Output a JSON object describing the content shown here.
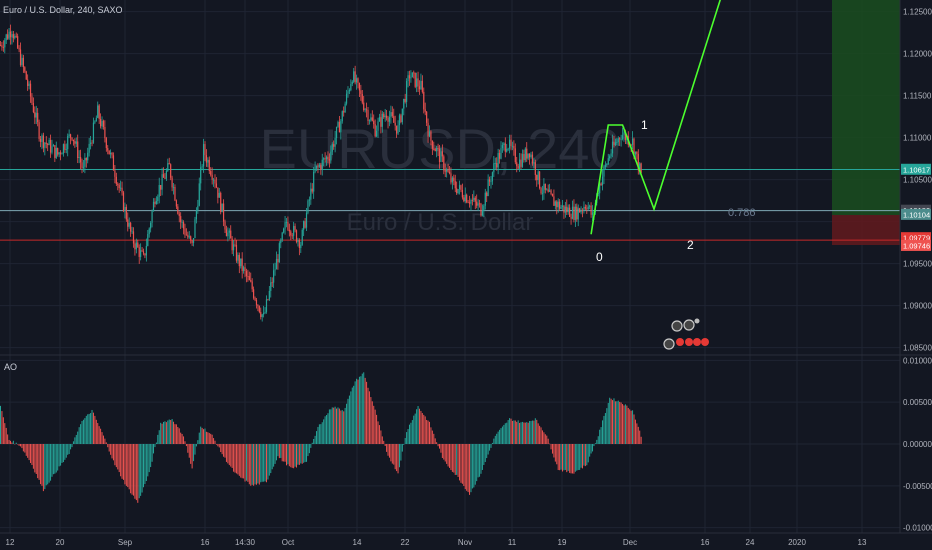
{
  "header": {
    "title": "Euro / U.S. Dollar, 240, SAXO"
  },
  "watermark": {
    "symbol": "EURUSD, 240",
    "name": "Euro / U.S. Dollar"
  },
  "colors": {
    "background": "#131722",
    "grid": "#1f2433",
    "candle_up": "#26a69a",
    "candle_down": "#ef5350",
    "wave": "#4cff2e",
    "target_zone": "#1b5e20",
    "stop_zone": "#7f1d1d"
  },
  "chart_data": [
    {
      "type": "candlestick",
      "ylim": [
        1.082,
        1.129
      ],
      "y_ticks": [
        "1.12500",
        "1.12000",
        "1.11500",
        "1.11000",
        "1.10500",
        "1.09500",
        "1.09000",
        "1.08500"
      ],
      "x_ticks": [
        "12",
        "20",
        "Sep",
        "16",
        "14:30",
        "Oct",
        "14",
        "22",
        "Nov",
        "11",
        "19",
        "Dec",
        "16",
        "24",
        "2020",
        "13"
      ],
      "price_labels": [
        {
          "text": "1.10617",
          "color": "#26a69a"
        },
        {
          "text": "1.10130",
          "color": "#434651"
        },
        {
          "text": "1.10104",
          "color": "#4c8c8c"
        },
        {
          "text": "1.09779",
          "color": "#e53935"
        },
        {
          "text": "1.09746",
          "color": "#ef5350"
        }
      ],
      "horizontal_lines": [
        1.1062,
        1.1013,
        1.0978
      ],
      "wave_labels": [
        "0",
        "1",
        "2"
      ],
      "fib_label": "0.786",
      "path_waypoints": [
        {
          "x": 0,
          "y": 1.121
        },
        {
          "x": 8,
          "y": 1.123
        },
        {
          "x": 18,
          "y": 1.117
        },
        {
          "x": 28,
          "y": 1.11
        },
        {
          "x": 40,
          "y": 1.108
        },
        {
          "x": 50,
          "y": 1.1105
        },
        {
          "x": 58,
          "y": 1.106
        },
        {
          "x": 68,
          "y": 1.113
        },
        {
          "x": 80,
          "y": 1.106
        },
        {
          "x": 92,
          "y": 1.098
        },
        {
          "x": 100,
          "y": 1.0955
        },
        {
          "x": 108,
          "y": 1.103
        },
        {
          "x": 118,
          "y": 1.1065
        },
        {
          "x": 126,
          "y": 1.1
        },
        {
          "x": 134,
          "y": 1.097
        },
        {
          "x": 142,
          "y": 1.1085
        },
        {
          "x": 150,
          "y": 1.105
        },
        {
          "x": 158,
          "y": 1.099
        },
        {
          "x": 166,
          "y": 1.0955
        },
        {
          "x": 176,
          "y": 1.092
        },
        {
          "x": 184,
          "y": 1.0885
        },
        {
          "x": 192,
          "y": 1.0945
        },
        {
          "x": 200,
          "y": 1.1
        },
        {
          "x": 210,
          "y": 1.0975
        },
        {
          "x": 220,
          "y": 1.106
        },
        {
          "x": 230,
          "y": 1.108
        },
        {
          "x": 238,
          "y": 1.112
        },
        {
          "x": 246,
          "y": 1.1175
        },
        {
          "x": 254,
          "y": 1.114
        },
        {
          "x": 262,
          "y": 1.111
        },
        {
          "x": 270,
          "y": 1.113
        },
        {
          "x": 278,
          "y": 1.111
        },
        {
          "x": 286,
          "y": 1.1175
        },
        {
          "x": 294,
          "y": 1.116
        },
        {
          "x": 300,
          "y": 1.11
        },
        {
          "x": 308,
          "y": 1.1075
        },
        {
          "x": 316,
          "y": 1.1045
        },
        {
          "x": 326,
          "y": 1.103
        },
        {
          "x": 336,
          "y": 1.1015
        },
        {
          "x": 346,
          "y": 1.107
        },
        {
          "x": 354,
          "y": 1.1095
        },
        {
          "x": 362,
          "y": 1.107
        },
        {
          "x": 370,
          "y": 1.1085
        },
        {
          "x": 378,
          "y": 1.104
        },
        {
          "x": 386,
          "y": 1.1025
        },
        {
          "x": 394,
          "y": 1.1015
        },
        {
          "x": 402,
          "y": 1.101
        },
        {
          "x": 410,
          "y": 1.1022
        },
        {
          "x": 414,
          "y": 1.1005
        },
        {
          "x": 418,
          "y": 1.104
        },
        {
          "x": 426,
          "y": 1.108
        },
        {
          "x": 434,
          "y": 1.1105
        },
        {
          "x": 442,
          "y": 1.1095
        },
        {
          "x": 448,
          "y": 1.1055
        }
      ],
      "wave_projection": [
        {
          "x": 413,
          "y": 1.0985
        },
        {
          "x": 425,
          "y": 1.1115
        },
        {
          "x": 435,
          "y": 1.1115
        },
        {
          "x": 457,
          "y": 1.1015
        },
        {
          "x": 510,
          "y": 1.13
        }
      ]
    },
    {
      "type": "bar",
      "series_name": "AO",
      "ylim": [
        -0.0105,
        0.0105
      ],
      "y_ticks": [
        "0.01000",
        "0.00500",
        "0.00000",
        "-0.00500",
        "-0.01000"
      ],
      "waypoints": [
        {
          "x": 0,
          "y": 0.0045
        },
        {
          "x": 6,
          "y": 0.0005
        },
        {
          "x": 14,
          "y": -0.0002
        },
        {
          "x": 22,
          "y": -0.0025
        },
        {
          "x": 30,
          "y": -0.0055
        },
        {
          "x": 38,
          "y": -0.0035
        },
        {
          "x": 48,
          "y": -0.0012
        },
        {
          "x": 56,
          "y": 0.0025
        },
        {
          "x": 64,
          "y": 0.004
        },
        {
          "x": 72,
          "y": 0.001
        },
        {
          "x": 80,
          "y": -0.0025
        },
        {
          "x": 88,
          "y": -0.005
        },
        {
          "x": 96,
          "y": -0.007
        },
        {
          "x": 104,
          "y": -0.0035
        },
        {
          "x": 112,
          "y": 0.0025
        },
        {
          "x": 120,
          "y": 0.003
        },
        {
          "x": 128,
          "y": 0.001
        },
        {
          "x": 134,
          "y": -0.003
        },
        {
          "x": 140,
          "y": 0.0022
        },
        {
          "x": 148,
          "y": 0.001
        },
        {
          "x": 156,
          "y": -0.0015
        },
        {
          "x": 164,
          "y": -0.0035
        },
        {
          "x": 176,
          "y": -0.005
        },
        {
          "x": 186,
          "y": -0.0045
        },
        {
          "x": 194,
          "y": -0.0015
        },
        {
          "x": 204,
          "y": -0.003
        },
        {
          "x": 214,
          "y": -0.002
        },
        {
          "x": 222,
          "y": 0.002
        },
        {
          "x": 232,
          "y": 0.0045
        },
        {
          "x": 240,
          "y": 0.004
        },
        {
          "x": 248,
          "y": 0.0075
        },
        {
          "x": 254,
          "y": 0.0085
        },
        {
          "x": 262,
          "y": 0.004
        },
        {
          "x": 270,
          "y": -0.001
        },
        {
          "x": 278,
          "y": -0.0035
        },
        {
          "x": 284,
          "y": 0.0015
        },
        {
          "x": 292,
          "y": 0.0045
        },
        {
          "x": 300,
          "y": 0.0025
        },
        {
          "x": 310,
          "y": -0.002
        },
        {
          "x": 320,
          "y": -0.004
        },
        {
          "x": 328,
          "y": -0.006
        },
        {
          "x": 336,
          "y": -0.0035
        },
        {
          "x": 346,
          "y": 0.001
        },
        {
          "x": 356,
          "y": 0.003
        },
        {
          "x": 366,
          "y": 0.0025
        },
        {
          "x": 374,
          "y": 0.003
        },
        {
          "x": 382,
          "y": 0.001
        },
        {
          "x": 390,
          "y": -0.003
        },
        {
          "x": 400,
          "y": -0.0035
        },
        {
          "x": 410,
          "y": -0.0025
        },
        {
          "x": 418,
          "y": 0.001
        },
        {
          "x": 426,
          "y": 0.0055
        },
        {
          "x": 434,
          "y": 0.005
        },
        {
          "x": 442,
          "y": 0.004
        },
        {
          "x": 448,
          "y": 0.001
        }
      ]
    }
  ]
}
